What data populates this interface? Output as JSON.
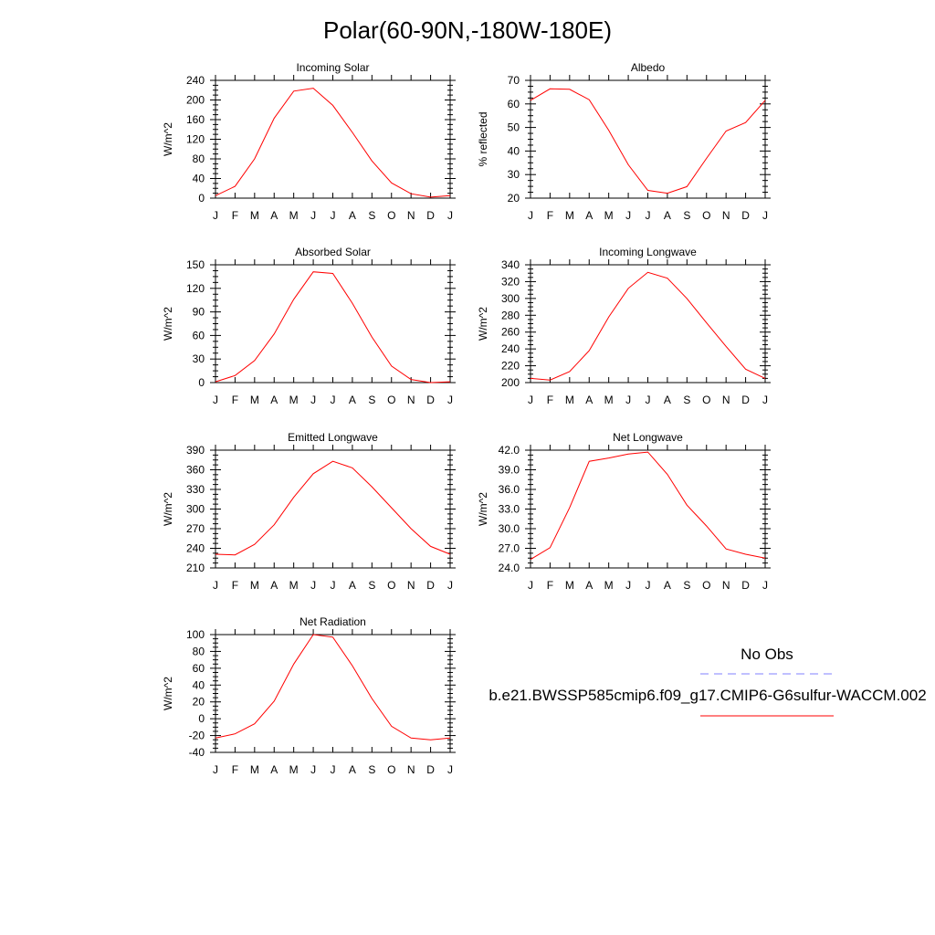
{
  "page": {
    "title": "Polar(60-90N,-180W-180E)"
  },
  "months": [
    "J",
    "F",
    "M",
    "A",
    "M",
    "J",
    "J",
    "A",
    "S",
    "O",
    "N",
    "D",
    "J"
  ],
  "chart_data": [
    {
      "type": "line",
      "title": "Incoming Solar",
      "ylabel": "W/m^2",
      "ylim": [
        0,
        240
      ],
      "yticks": [
        0,
        40,
        80,
        120,
        160,
        200,
        240
      ],
      "ytick_labels": [
        "0",
        "40",
        "80",
        "120",
        "160",
        "200",
        "240"
      ],
      "series": [
        {
          "values": [
            5,
            24,
            80,
            163,
            218,
            224,
            189,
            134,
            76,
            31,
            9,
            2,
            5
          ],
          "color": "#ff0000"
        }
      ]
    },
    {
      "type": "line",
      "title": "Albedo",
      "ylabel": "% reflected",
      "ylim": [
        20,
        70
      ],
      "yticks": [
        20,
        30,
        40,
        50,
        60,
        70
      ],
      "ytick_labels": [
        "20",
        "30",
        "40",
        "50",
        "60",
        "70"
      ],
      "series": [
        {
          "values": [
            61.5,
            66.4,
            66.2,
            61.8,
            48.8,
            34.2,
            23.3,
            22.1,
            24.9,
            36.9,
            48.5,
            52.1,
            61.5
          ],
          "color": "#ff0000"
        }
      ]
    },
    {
      "type": "line",
      "title": "Absorbed Solar",
      "ylabel": "W/m^2",
      "ylim": [
        0,
        150
      ],
      "yticks": [
        0,
        30,
        60,
        90,
        120,
        150
      ],
      "ytick_labels": [
        "0",
        "30",
        "60",
        "90",
        "120",
        "150"
      ],
      "series": [
        {
          "values": [
            1,
            9,
            28,
            62,
            106,
            141,
            139,
            101,
            58,
            21,
            4,
            0,
            1
          ],
          "color": "#ff0000"
        }
      ]
    },
    {
      "type": "line",
      "title": "Incoming Longwave",
      "ylabel": "W/m^2",
      "ylim": [
        200,
        340
      ],
      "yticks": [
        200,
        220,
        240,
        260,
        280,
        300,
        320,
        340
      ],
      "ytick_labels": [
        "200",
        "220",
        "240",
        "260",
        "280",
        "300",
        "320",
        "340"
      ],
      "series": [
        {
          "values": [
            205,
            203,
            213,
            238,
            278,
            312,
            331,
            324,
            300,
            271,
            243,
            216,
            205
          ],
          "color": "#ff0000"
        }
      ]
    },
    {
      "type": "line",
      "title": "Emitted Longwave",
      "ylabel": "W/m^2",
      "ylim": [
        210,
        390
      ],
      "yticks": [
        210,
        240,
        270,
        300,
        330,
        360,
        390
      ],
      "ytick_labels": [
        "210",
        "240",
        "270",
        "300",
        "330",
        "360",
        "390"
      ],
      "series": [
        {
          "values": [
            231,
            230,
            246,
            276,
            318,
            354,
            373,
            363,
            334,
            302,
            270,
            243,
            231
          ],
          "color": "#ff0000"
        }
      ]
    },
    {
      "type": "line",
      "title": "Net Longwave",
      "ylabel": "W/m^2",
      "ylim": [
        24,
        42
      ],
      "yticks": [
        24,
        27,
        30,
        33,
        36,
        39,
        42
      ],
      "ytick_labels": [
        "24.0",
        "27.0",
        "30.0",
        "33.0",
        "36.0",
        "39.0",
        "42.0"
      ],
      "series": [
        {
          "values": [
            25.3,
            27.1,
            33.2,
            40.3,
            40.8,
            41.4,
            41.7,
            38.3,
            33.6,
            30.4,
            26.9,
            26.1,
            25.5
          ],
          "color": "#ff0000"
        }
      ]
    },
    {
      "type": "line",
      "title": "Net Radiation",
      "ylabel": "W/m^2",
      "ylim": [
        -40,
        100
      ],
      "yticks": [
        -40,
        -20,
        0,
        20,
        40,
        60,
        80,
        100
      ],
      "ytick_labels": [
        "-40",
        "-20",
        "0",
        "20",
        "40",
        "60",
        "80",
        "100"
      ],
      "series": [
        {
          "values": [
            -23,
            -18,
            -6,
            21,
            65,
            100,
            97,
            63,
            24,
            -9,
            -23,
            -25,
            -23
          ],
          "color": "#ff0000"
        }
      ]
    }
  ],
  "legend": {
    "items": [
      {
        "label": "No Obs",
        "color": "#8080ff",
        "style": "dashed"
      },
      {
        "label": "b.e21.BWSSP585cmip6.f09_g17.CMIP6-G6sulfur-WACCM.002",
        "color": "#ff0000",
        "style": "solid"
      }
    ]
  }
}
